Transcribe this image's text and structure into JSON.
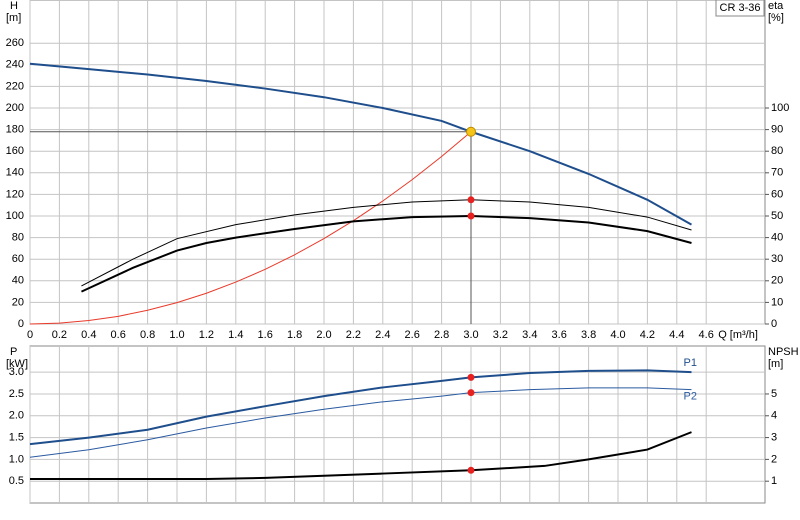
{
  "chart_data": [
    {
      "type": "line",
      "model": "CR 3-36",
      "ylabel": "H",
      "ylabel_unit": "[m]",
      "y2label": "eta",
      "y2label_unit": "[%]",
      "xlabel": "Q [m³/h]",
      "xlim": [
        0,
        5
      ],
      "xticks": [
        {
          "value": 0,
          "label": "0"
        },
        0.2,
        0.4,
        0.6,
        0.8,
        {
          "value": 1,
          "label": "1.0"
        },
        1.2,
        1.4,
        1.6,
        1.8,
        {
          "value": 2,
          "label": "2.0"
        },
        2.2,
        2.4,
        2.6,
        2.8,
        {
          "value": 3,
          "label": "3.0"
        },
        3.2,
        3.4,
        3.6,
        3.8,
        {
          "value": 4,
          "label": "4.0"
        },
        4.2,
        4.4,
        4.6
      ],
      "ylim": [
        0,
        300
      ],
      "yticks": [
        0,
        20,
        40,
        60,
        80,
        100,
        120,
        140,
        160,
        180,
        200,
        220,
        240,
        260
      ],
      "y2lim": [
        0,
        150
      ],
      "y2ticks": [
        0,
        10,
        20,
        30,
        40,
        50,
        60,
        70,
        80,
        90,
        100
      ],
      "grid": true,
      "duty_point": {
        "x": 3.0,
        "y": 178
      },
      "marker_color": "#e82020",
      "duty_color": "#f5c518",
      "series": [
        {
          "color": "#1f4e8c",
          "width": 2,
          "x": [
            0,
            0.4,
            0.8,
            1.2,
            1.6,
            2.0,
            2.4,
            2.8,
            3.0,
            3.4,
            3.8,
            4.2,
            4.5
          ],
          "values": [
            241,
            236,
            231,
            225,
            218,
            210,
            200,
            188,
            178,
            160,
            139,
            115,
            92
          ]
        },
        {
          "color": "#e83a2a",
          "width": 1,
          "x": [
            0,
            0.2,
            0.4,
            0.6,
            0.8,
            1.0,
            1.2,
            1.4,
            1.6,
            1.8,
            2.0,
            2.2,
            2.4,
            2.6,
            2.8,
            3.0
          ],
          "values": [
            0,
            0.8,
            3.2,
            7.1,
            12.7,
            19.8,
            28.5,
            38.8,
            50.6,
            64.1,
            79.1,
            95.7,
            113.9,
            133.7,
            155.1,
            178
          ]
        },
        {
          "color": "#000000",
          "width": 1,
          "axis": "y2",
          "highlight": true,
          "x": [
            0.35,
            0.7,
            1.0,
            1.4,
            1.8,
            2.2,
            2.6,
            3.0,
            3.4,
            3.8,
            4.2,
            4.5
          ],
          "values": [
            17.6,
            30,
            39.5,
            46,
            50.5,
            54,
            56.5,
            57.5,
            56.5,
            54,
            49.5,
            43.5
          ]
        },
        {
          "color": "#000000",
          "width": 2,
          "axis": "y2",
          "highlight": true,
          "x": [
            0.35,
            0.7,
            1.0,
            1.2,
            1.4,
            1.8,
            2.2,
            2.6,
            3.0,
            3.4,
            3.8,
            4.2,
            4.5
          ],
          "values": [
            15,
            26,
            34,
            37.5,
            40,
            44,
            47.5,
            49.5,
            50,
            49,
            47,
            43,
            37.5
          ]
        }
      ]
    },
    {
      "type": "line",
      "ylabel": "P",
      "ylabel_unit": "[kW]",
      "y2label": "NPSH",
      "y2label_unit": "[m]",
      "xlim": [
        0,
        5
      ],
      "xticks": [
        0,
        0.2,
        0.4,
        0.6,
        0.8,
        1,
        1.2,
        1.4,
        1.6,
        1.8,
        2,
        2.2,
        2.4,
        2.6,
        2.8,
        3,
        3.2,
        3.4,
        3.6,
        3.8,
        4,
        4.2,
        4.4,
        4.6
      ],
      "ylim": [
        0,
        3.6
      ],
      "yticks": [
        0.5,
        {
          "value": 1,
          "label": "1.0"
        },
        1.5,
        {
          "value": 2,
          "label": "2.0"
        },
        2.5,
        {
          "value": 3,
          "label": "3.0"
        }
      ],
      "y2lim": [
        0,
        7.2
      ],
      "y2ticks": [
        1,
        2,
        3,
        4,
        5
      ],
      "grid": true,
      "duty_x": 3.0,
      "marker_color": "#e82020",
      "series": [
        {
          "name": "P1",
          "color": "#1f4e8c",
          "width": 2,
          "highlight": true,
          "x": [
            0,
            0.4,
            0.8,
            1.2,
            1.6,
            2.0,
            2.4,
            2.8,
            3.0,
            3.4,
            3.8,
            4.2,
            4.5
          ],
          "values": [
            1.35,
            1.5,
            1.68,
            1.98,
            2.22,
            2.45,
            2.65,
            2.8,
            2.88,
            2.98,
            3.03,
            3.04,
            3.0
          ]
        },
        {
          "name": "P2",
          "color": "#2a5aa0",
          "width": 1,
          "highlight": true,
          "x": [
            0,
            0.4,
            0.8,
            1.2,
            1.6,
            2.0,
            2.4,
            2.8,
            3.0,
            3.4,
            3.8,
            4.2,
            4.5
          ],
          "values": [
            1.05,
            1.22,
            1.45,
            1.72,
            1.95,
            2.15,
            2.32,
            2.45,
            2.53,
            2.6,
            2.64,
            2.64,
            2.6
          ]
        },
        {
          "color": "#000000",
          "width": 2,
          "axis": "y2",
          "highlight": true,
          "x": [
            0,
            0.8,
            1.2,
            1.6,
            2.0,
            2.4,
            3.0,
            3.5,
            3.8,
            4.2,
            4.5
          ],
          "values": [
            1.1,
            1.1,
            1.1,
            1.15,
            1.25,
            1.35,
            1.5,
            1.7,
            2.0,
            2.45,
            3.25
          ]
        }
      ]
    }
  ]
}
